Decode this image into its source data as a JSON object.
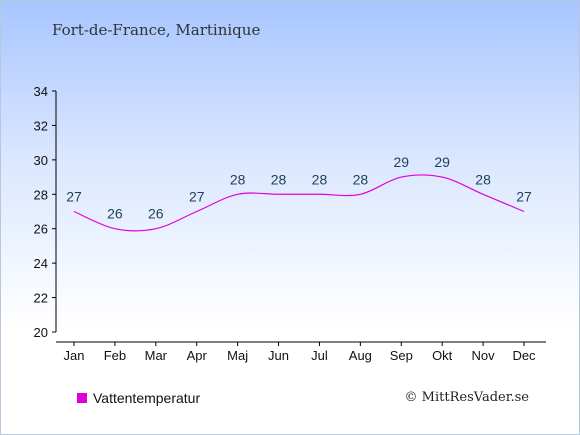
{
  "location_title": "Fort-de-France, Martinique",
  "credit": "© MittResVader.se",
  "colors": {
    "series": "#dd00dd",
    "axis": "#000000",
    "label": "#1f3f56"
  },
  "chart_data": {
    "type": "line",
    "categories": [
      "Jan",
      "Feb",
      "Mar",
      "Apr",
      "Maj",
      "Jun",
      "Jul",
      "Aug",
      "Sep",
      "Okt",
      "Nov",
      "Dec"
    ],
    "series": [
      {
        "name": "Vattentemperatur",
        "values": [
          27,
          26,
          26,
          27,
          28,
          28,
          28,
          28,
          29,
          29,
          28,
          27
        ]
      }
    ],
    "ylim": [
      20,
      34
    ],
    "yticks": [
      20,
      22,
      24,
      26,
      28,
      30,
      32,
      34
    ],
    "grid": false,
    "legend": "bottom-left"
  }
}
